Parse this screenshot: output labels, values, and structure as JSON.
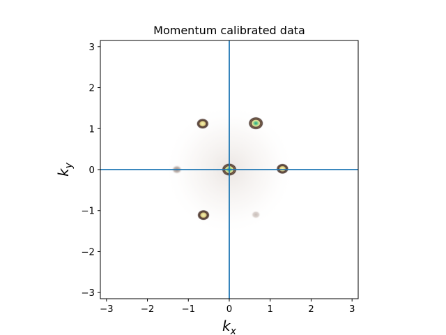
{
  "chart_data": {
    "type": "heatmap",
    "title": "Momentum calibrated data",
    "xlabel": {
      "base": "k",
      "sub": "x"
    },
    "ylabel": {
      "base": "k",
      "sub": "y"
    },
    "xlim": [
      -3.15,
      3.15
    ],
    "ylim": [
      -3.15,
      3.15
    ],
    "xticks": [
      {
        "v": -3,
        "label": "−3"
      },
      {
        "v": -2,
        "label": "−2"
      },
      {
        "v": -1,
        "label": "−1"
      },
      {
        "v": 0,
        "label": "0"
      },
      {
        "v": 1,
        "label": "1"
      },
      {
        "v": 2,
        "label": "2"
      },
      {
        "v": 3,
        "label": "3"
      }
    ],
    "yticks": [
      {
        "v": -3,
        "label": "−3"
      },
      {
        "v": -2,
        "label": "−2"
      },
      {
        "v": -1,
        "label": "−1"
      },
      {
        "v": 0,
        "label": "0"
      },
      {
        "v": 1,
        "label": "1"
      },
      {
        "v": 2,
        "label": "2"
      },
      {
        "v": 3,
        "label": "3"
      }
    ],
    "grid": false,
    "crosshair": {
      "x": 0,
      "y": 0,
      "color": "#1f77b4"
    },
    "colormap": "terrain_r",
    "peaks": [
      {
        "name": "center",
        "kx": 0.0,
        "ky": 0.0,
        "intensity": 1.0
      },
      {
        "name": "upper-right",
        "kx": 0.65,
        "ky": 1.13,
        "intensity": 0.95
      },
      {
        "name": "upper-left",
        "kx": -0.65,
        "ky": 1.12,
        "intensity": 0.55
      },
      {
        "name": "right",
        "kx": 1.3,
        "ky": 0.02,
        "intensity": 0.6
      },
      {
        "name": "left",
        "kx": -1.28,
        "ky": 0.0,
        "intensity": 0.3
      },
      {
        "name": "lower-left",
        "kx": -0.63,
        "ky": -1.11,
        "intensity": 0.6
      },
      {
        "name": "lower-right",
        "kx": 0.65,
        "ky": -1.1,
        "intensity": 0.15
      }
    ]
  }
}
